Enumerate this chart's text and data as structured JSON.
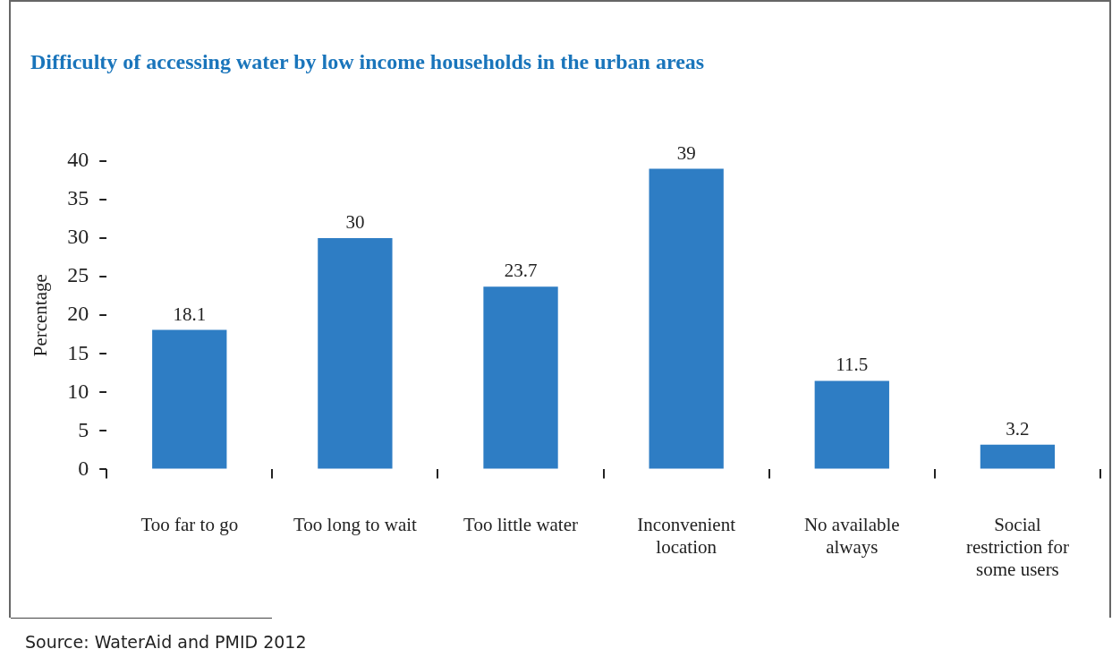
{
  "chart_data": {
    "type": "bar",
    "title": "Difficulty of accessing water by low income households in the urban areas",
    "ylabel": "Percentage",
    "categories": [
      "Too far to go",
      "Too long to wait",
      "Too little water",
      "Inconvenient location",
      "No available always",
      "Social restriction for some users"
    ],
    "values": [
      18.1,
      30,
      23.7,
      39,
      11.5,
      3.2
    ],
    "color": "#2e7dc4",
    "ylim": [
      0,
      40
    ],
    "yticks": [
      0,
      5,
      10,
      15,
      20,
      25,
      30,
      35,
      40
    ],
    "grid": false,
    "legend": false,
    "data_labels": true,
    "annotations": [
      "Source: WaterAid and PMID 2012"
    ]
  }
}
